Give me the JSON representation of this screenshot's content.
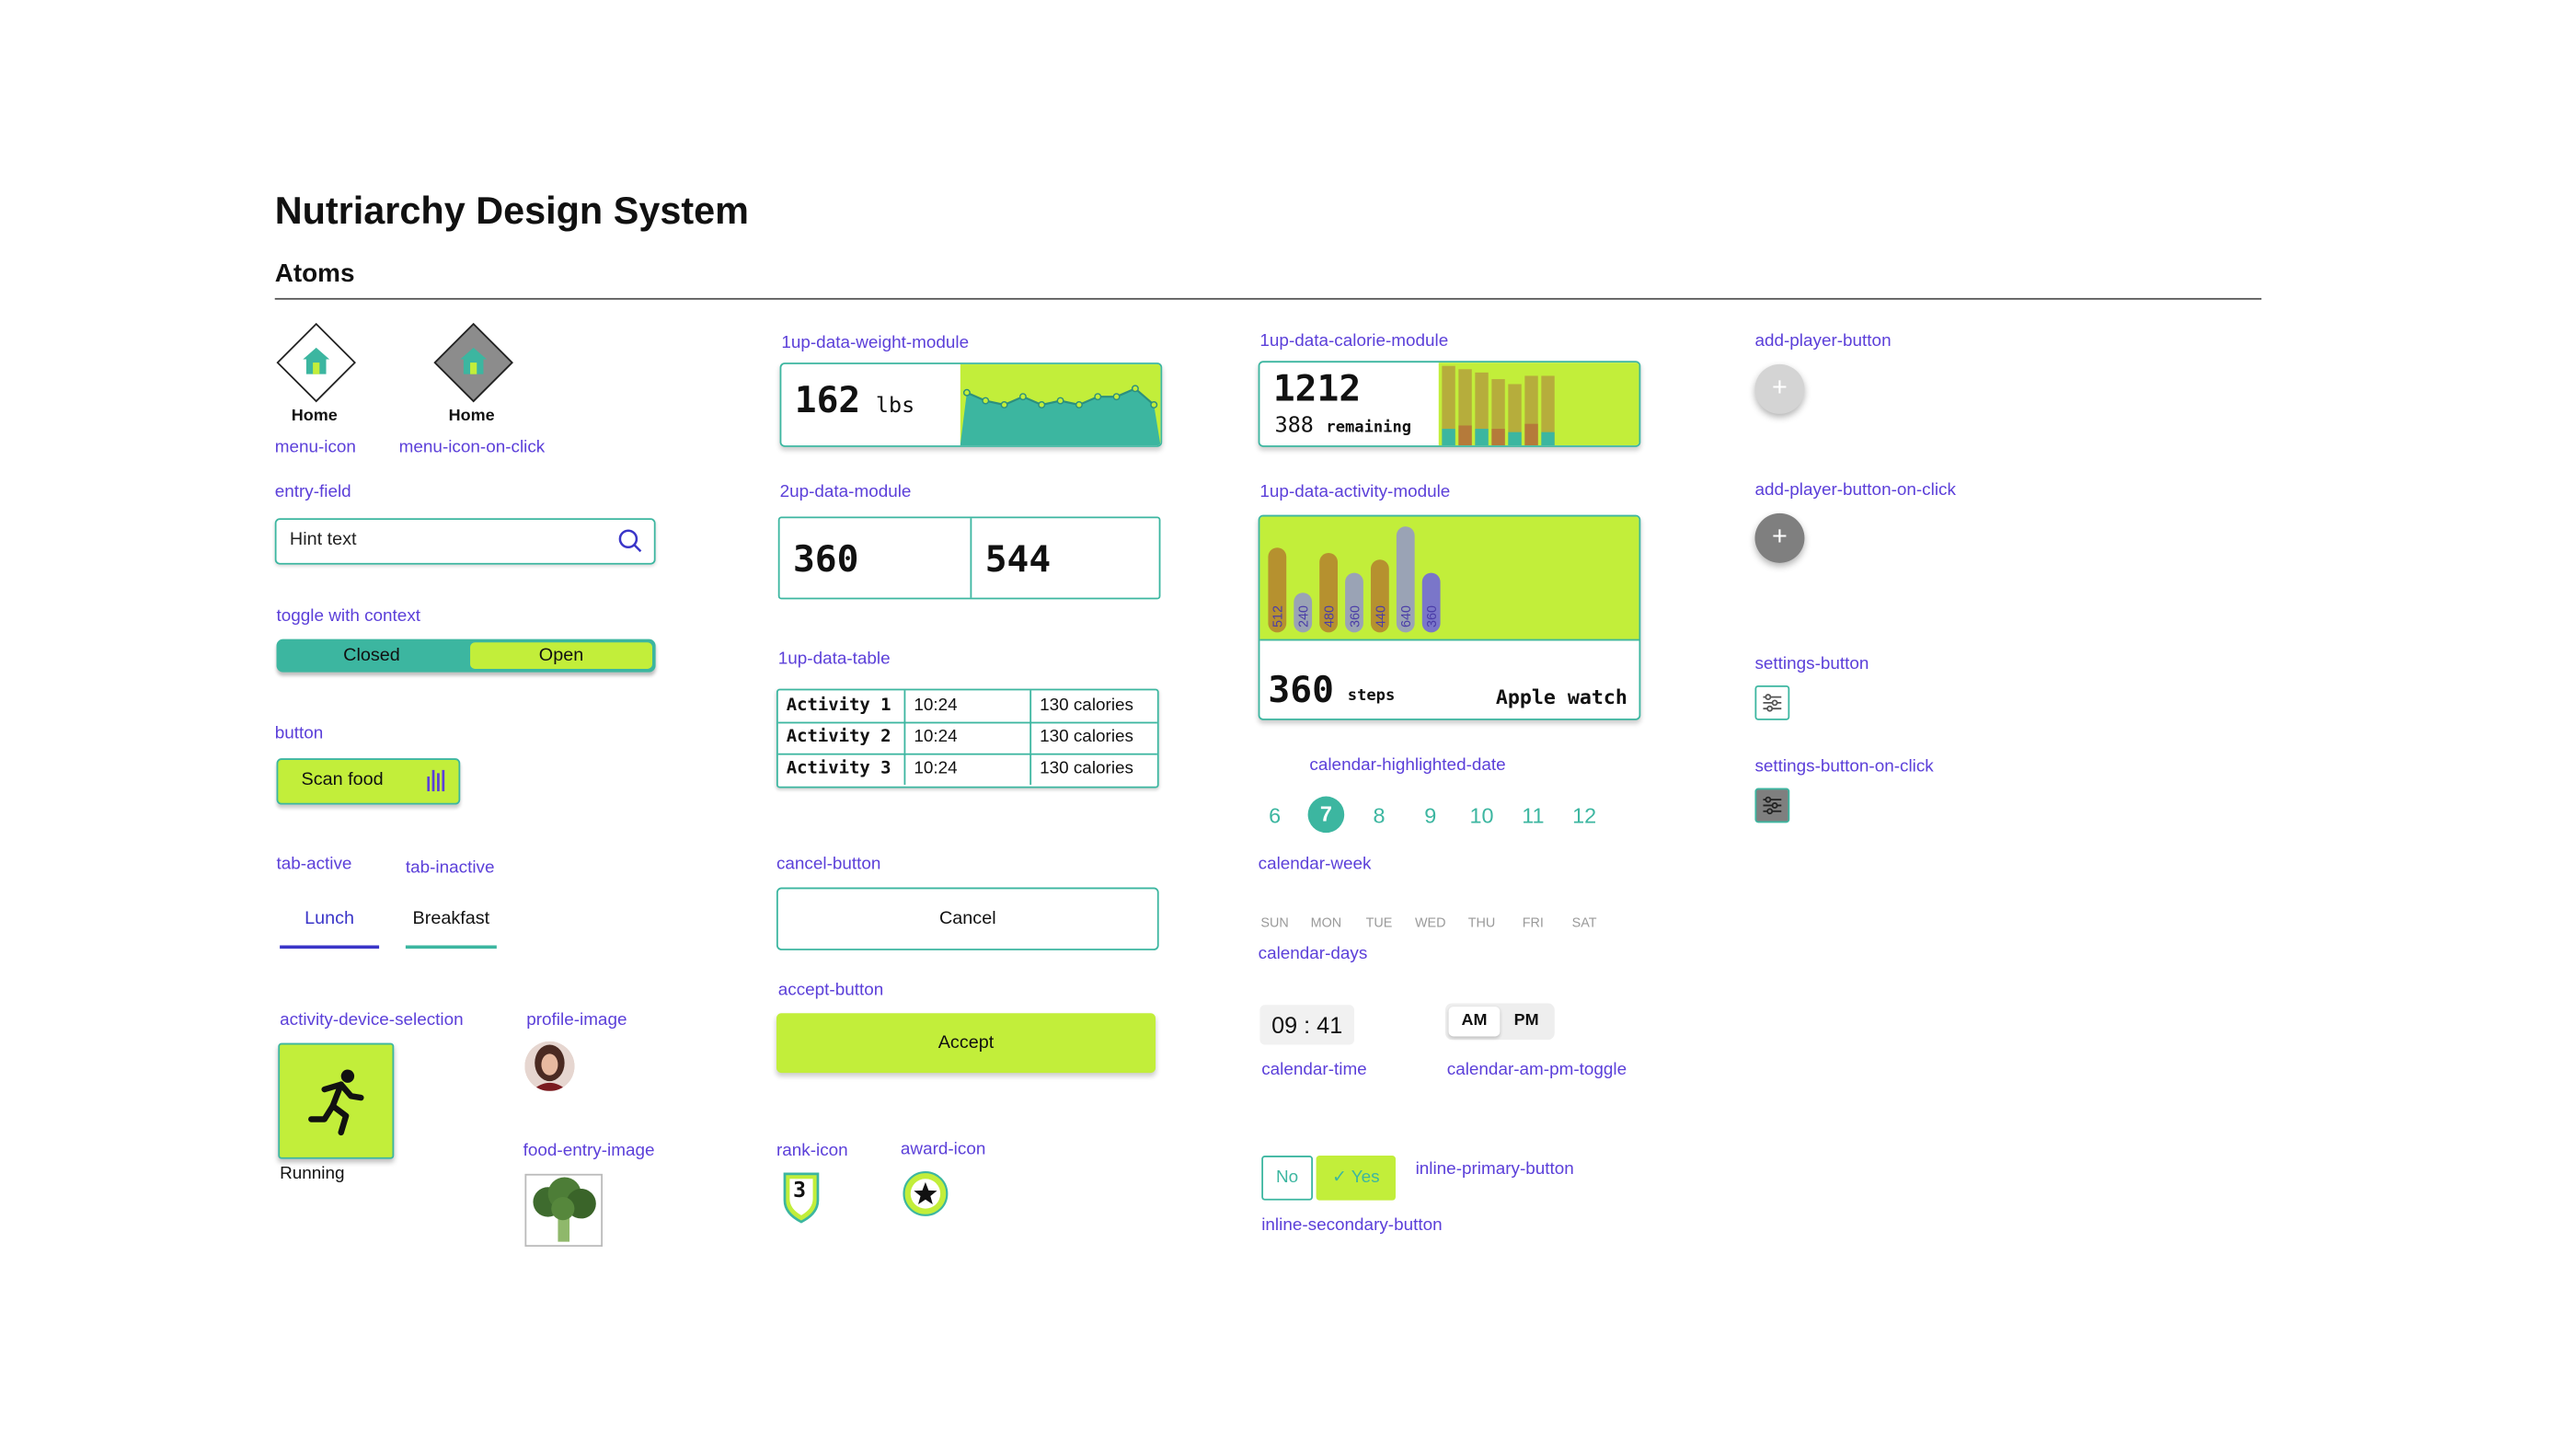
{
  "page": {
    "title": "Nutriarchy Design System",
    "subtitle": "Atoms"
  },
  "labels": {
    "menu_icon": "menu-icon",
    "menu_icon_click": "menu-icon-on-click",
    "entry_field": "entry-field",
    "toggle": "toggle with context",
    "button": "button",
    "tab_active": "tab-active",
    "tab_inactive": "tab-inactive",
    "activity_device": "activity-device-selection",
    "profile_image": "profile-image",
    "food_entry_image": "food-entry-image",
    "weight_module": "1up-data-weight-module",
    "twoup_module": "2up-data-module",
    "data_table": "1up-data-table",
    "cancel_button": "cancel-button",
    "accept_button": "accept-button",
    "rank_icon": "rank-icon",
    "award_icon": "award-icon",
    "calorie_module": "1up-data-calorie-module",
    "activity_module": "1up-data-activity-module",
    "calendar_highlighted": "calendar-highlighted-date",
    "calendar_week": "calendar-week",
    "calendar_days": "calendar-days",
    "calendar_time": "calendar-time",
    "calendar_ampm": "calendar-am-pm-toggle",
    "inline_primary": "inline-primary-button",
    "inline_secondary": "inline-secondary-button",
    "add_player": "add-player-button",
    "add_player_click": "add-player-button-on-click",
    "settings": "settings-button",
    "settings_click": "settings-button-on-click"
  },
  "menu": {
    "home_label": "Home"
  },
  "entry": {
    "hint": "Hint text"
  },
  "toggle": {
    "closed": "Closed",
    "open": "Open"
  },
  "scan": {
    "label": "Scan food"
  },
  "tabs": {
    "active": "Lunch",
    "inactive": "Breakfast"
  },
  "device": {
    "label": "Running"
  },
  "weight": {
    "value": "162",
    "unit": "lbs"
  },
  "twoup": {
    "left": "360",
    "right": "544"
  },
  "table": {
    "rows": [
      {
        "activity": "Activity 1",
        "time": "10:24",
        "calories": "130 calories"
      },
      {
        "activity": "Activity 2",
        "time": "10:24",
        "calories": "130 calories"
      },
      {
        "activity": "Activity 3",
        "time": "10:24",
        "calories": "130 calories"
      }
    ]
  },
  "buttons": {
    "cancel": "Cancel",
    "accept": "Accept"
  },
  "rank": {
    "value": "3"
  },
  "calorie": {
    "value": "1212",
    "remaining_value": "388",
    "remaining_label": "remaining"
  },
  "activity": {
    "value": "360",
    "unit": "steps",
    "device": "Apple watch"
  },
  "calendar": {
    "dates": [
      "6",
      "7",
      "8",
      "9",
      "10",
      "11",
      "12"
    ],
    "highlighted": "7",
    "days": [
      "SUN",
      "MON",
      "TUE",
      "WED",
      "THU",
      "FRI",
      "SAT"
    ],
    "time": "09 : 41",
    "am": "AM",
    "pm": "PM"
  },
  "inline": {
    "no": "No",
    "yes": "Yes"
  },
  "colors": {
    "teal": "#3cb6a0",
    "lime": "#c2ee3a",
    "label_purple": "#5b3fd9"
  },
  "chart_data": [
    {
      "type": "area",
      "x": [
        1,
        2,
        3,
        4,
        5,
        6,
        7,
        8,
        9,
        10,
        11
      ],
      "values": [
        163,
        161,
        160,
        162,
        160,
        161,
        160,
        162,
        162,
        164,
        160
      ]
    },
    {
      "type": "bar",
      "x": [
        1,
        2,
        3,
        4,
        5,
        6,
        7
      ],
      "values": [
        512,
        240,
        480,
        360,
        440,
        640,
        360
      ],
      "bar_labels": [
        "512",
        "240",
        "480",
        "360",
        "440",
        "640",
        "360"
      ]
    }
  ]
}
